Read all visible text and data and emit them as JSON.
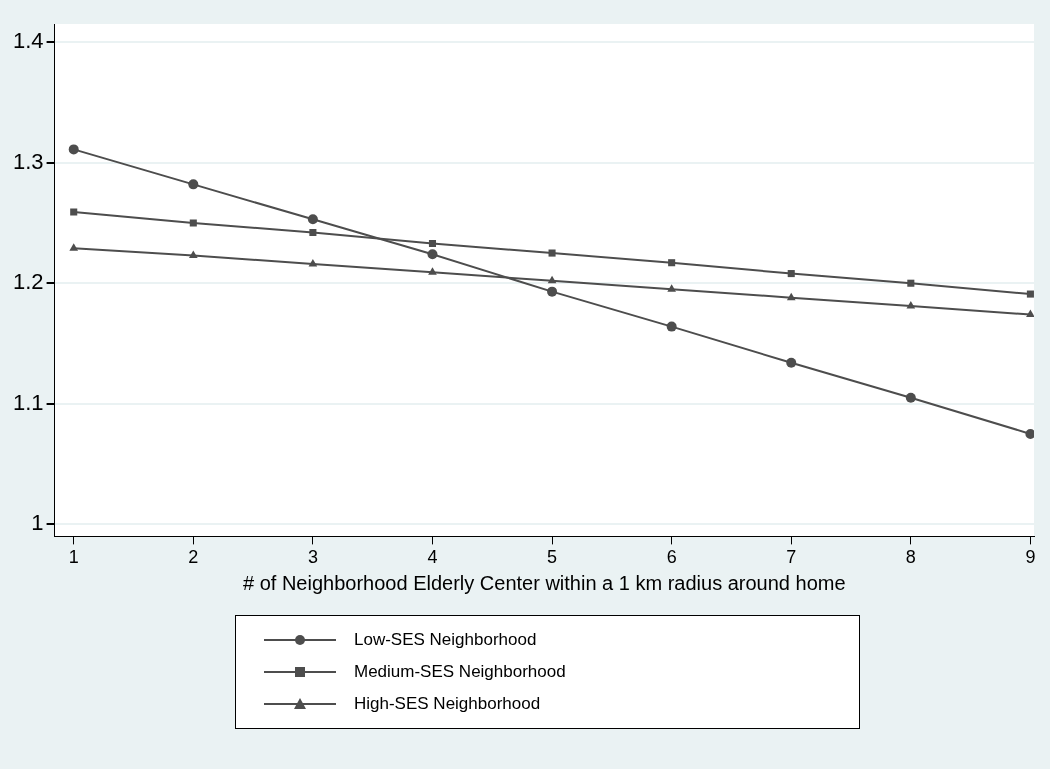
{
  "chart_data": {
    "type": "line",
    "xlabel": "# of Neighborhood Elderly Center within a 1 km radius around home",
    "x": [
      1,
      2,
      3,
      4,
      5,
      6,
      7,
      8,
      9
    ],
    "xlim": [
      0.84,
      9.03
    ],
    "xticks": [
      1,
      2,
      3,
      4,
      5,
      6,
      7,
      8,
      9
    ],
    "ylim": [
      0.99,
      1.415
    ],
    "yticks": [
      1,
      1.1,
      1.2,
      1.3,
      1.4
    ],
    "grid": "y",
    "legend": "bottom",
    "line_style": "solid",
    "series": [
      {
        "name": "Low-SES Neighborhood",
        "color": "#4d4d4d",
        "marker": "circle",
        "values": [
          1.311,
          1.282,
          1.253,
          1.224,
          1.193,
          1.164,
          1.134,
          1.105,
          1.075
        ]
      },
      {
        "name": "Medium-SES Neighborhood",
        "color": "#4d4d4d",
        "marker": "square",
        "values": [
          1.259,
          1.25,
          1.242,
          1.233,
          1.225,
          1.217,
          1.208,
          1.2,
          1.191
        ]
      },
      {
        "name": "High-SES Neighborhood",
        "color": "#4d4d4d",
        "marker": "triangle",
        "values": [
          1.229,
          1.223,
          1.216,
          1.209,
          1.202,
          1.195,
          1.188,
          1.181,
          1.174
        ]
      }
    ]
  }
}
